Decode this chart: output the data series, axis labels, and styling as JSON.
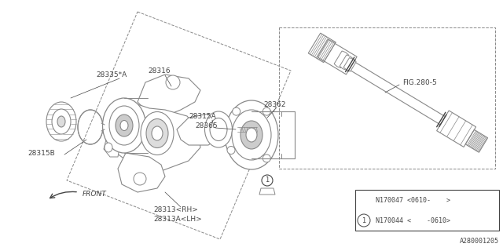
{
  "bg_color": "#ffffff",
  "line_color": "#888888",
  "dark_color": "#444444",
  "watermark": "A280001205",
  "legend_text_1": "N170044 <    -0610>",
  "legend_text_2": "N170047 <0610-    >"
}
